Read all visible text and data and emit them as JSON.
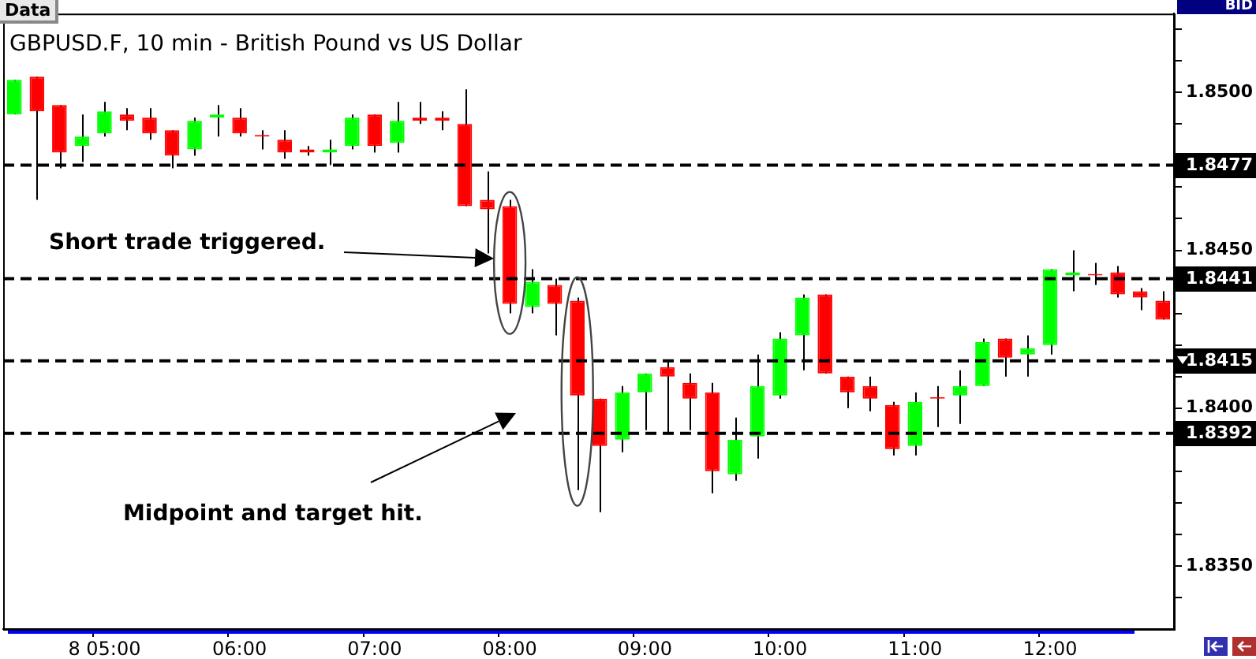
{
  "chart_data": {
    "type": "candlestick",
    "title": "GBPUSD.F, 10 min - British Pound vs US Dollar",
    "categories": [
      null,
      null,
      null,
      null,
      "8 05:00",
      null,
      null,
      null,
      null,
      null,
      "06:00",
      null,
      null,
      null,
      null,
      null,
      "07:00",
      null,
      null,
      null,
      null,
      null,
      "08:00",
      null,
      null,
      null,
      null,
      null,
      "09:00",
      null,
      null,
      null,
      null,
      null,
      "10:00",
      null,
      null,
      null,
      null,
      null,
      "11:00",
      null,
      null,
      null,
      null,
      null,
      "12:00",
      null,
      null,
      null,
      null,
      null
    ],
    "ohlc": [
      [
        1.8493,
        1.8504,
        1.8493,
        1.8504
      ],
      [
        1.8505,
        1.8505,
        1.8466,
        1.8494
      ],
      [
        1.8496,
        1.8496,
        1.8476,
        1.8481
      ],
      [
        1.8483,
        1.8493,
        1.8478,
        1.8486
      ],
      [
        1.8487,
        1.8497,
        1.8486,
        1.8494
      ],
      [
        1.8493,
        1.8495,
        1.8488,
        1.8491
      ],
      [
        1.8492,
        1.8495,
        1.8485,
        1.8487
      ],
      [
        1.8488,
        1.8488,
        1.8476,
        1.848
      ],
      [
        1.8482,
        1.8492,
        1.848,
        1.8491
      ],
      [
        1.8492,
        1.8496,
        1.8486,
        1.8493
      ],
      [
        1.8492,
        1.8495,
        1.8486,
        1.8487
      ],
      [
        1.8486,
        1.8488,
        1.8482,
        1.8486
      ],
      [
        1.8485,
        1.8488,
        1.8479,
        1.8481
      ],
      [
        1.8482,
        1.8483,
        1.848,
        1.8481
      ],
      [
        1.8481,
        1.8485,
        1.8477,
        1.8482
      ],
      [
        1.8483,
        1.8493,
        1.8482,
        1.8492
      ],
      [
        1.8493,
        1.8493,
        1.8481,
        1.8483
      ],
      [
        1.8484,
        1.8497,
        1.8481,
        1.8491
      ],
      [
        1.8492,
        1.8497,
        1.849,
        1.8491
      ],
      [
        1.8492,
        1.8494,
        1.8488,
        1.8491
      ],
      [
        1.849,
        1.8501,
        1.8464,
        1.8464
      ],
      [
        1.8466,
        1.8475,
        1.8449,
        1.8463
      ],
      [
        1.8464,
        1.8466,
        1.843,
        1.8433
      ],
      [
        1.8432,
        1.8444,
        1.843,
        1.844
      ],
      [
        1.8439,
        1.8441,
        1.8423,
        1.8433
      ],
      [
        1.8434,
        1.8435,
        1.8374,
        1.8404
      ],
      [
        1.8403,
        1.8403,
        1.8367,
        1.8388
      ],
      [
        1.839,
        1.8407,
        1.8386,
        1.8405
      ],
      [
        1.8405,
        1.8411,
        1.8393,
        1.8411
      ],
      [
        1.8413,
        1.8415,
        1.8392,
        1.841
      ],
      [
        1.8408,
        1.8411,
        1.8393,
        1.8403
      ],
      [
        1.8405,
        1.8408,
        1.8373,
        1.838
      ],
      [
        1.8379,
        1.8397,
        1.8377,
        1.839
      ],
      [
        1.8391,
        1.8417,
        1.8384,
        1.8407
      ],
      [
        1.8404,
        1.8424,
        1.8403,
        1.8422
      ],
      [
        1.8423,
        1.8436,
        1.8412,
        1.8435
      ],
      [
        1.8436,
        1.8436,
        1.8411,
        1.8411
      ],
      [
        1.841,
        1.841,
        1.84,
        1.8405
      ],
      [
        1.8407,
        1.841,
        1.8399,
        1.8403
      ],
      [
        1.8401,
        1.8402,
        1.8385,
        1.8387
      ],
      [
        1.8388,
        1.8405,
        1.8385,
        1.8402
      ],
      [
        1.8403,
        1.8407,
        1.8394,
        1.8403
      ],
      [
        1.8404,
        1.8412,
        1.8395,
        1.8407
      ],
      [
        1.8407,
        1.8422,
        1.8407,
        1.8421
      ],
      [
        1.8422,
        1.8422,
        1.841,
        1.8416
      ],
      [
        1.8417,
        1.8423,
        1.841,
        1.8419
      ],
      [
        1.842,
        1.8444,
        1.8417,
        1.8444
      ],
      [
        1.8442,
        1.845,
        1.8437,
        1.8443
      ],
      [
        1.8442,
        1.8446,
        1.8439,
        1.8442
      ],
      [
        1.8443,
        1.8445,
        1.8435,
        1.8436
      ],
      [
        1.8437,
        1.8438,
        1.8431,
        1.8435
      ],
      [
        1.8434,
        1.8437,
        1.8428,
        1.8428
      ]
    ],
    "colors": [
      "#00ff00",
      "#ff0000",
      "#ff0000",
      "#00ff00",
      "#00ff00",
      "#ff0000",
      "#ff0000",
      "#ff0000",
      "#00ff00",
      "#00ff00",
      "#ff0000",
      "#ff0000",
      "#ff0000",
      "#ff0000",
      "#00ff00",
      "#00ff00",
      "#ff0000",
      "#00ff00",
      "#ff0000",
      "#ff0000",
      "#ff0000",
      "#ff0000",
      "#ff0000",
      "#00ff00",
      "#ff0000",
      "#ff0000",
      "#ff0000",
      "#00ff00",
      "#00ff00",
      "#ff0000",
      "#ff0000",
      "#ff0000",
      "#00ff00",
      "#00ff00",
      "#00ff00",
      "#00ff00",
      "#ff0000",
      "#ff0000",
      "#ff0000",
      "#ff0000",
      "#00ff00",
      "#ff0000",
      "#00ff00",
      "#00ff00",
      "#ff0000",
      "#00ff00",
      "#00ff00",
      "#00ff00",
      "#ff0000",
      "#ff0000",
      "#ff0000",
      "#ff0000"
    ],
    "ylim": [
      1.833,
      1.8525
    ],
    "yticks": [
      {
        "value": 1.834,
        "label": null
      },
      {
        "value": 1.835,
        "label": "1.8350"
      },
      {
        "value": 1.836,
        "label": null
      },
      {
        "value": 1.837,
        "label": null
      },
      {
        "value": 1.838,
        "label": null
      },
      {
        "value": 1.839,
        "label": null
      },
      {
        "value": 1.84,
        "label": "1.8400"
      },
      {
        "value": 1.841,
        "label": null
      },
      {
        "value": 1.842,
        "label": null
      },
      {
        "value": 1.843,
        "label": null
      },
      {
        "value": 1.844,
        "label": null
      },
      {
        "value": 1.845,
        "label": "1.8450"
      },
      {
        "value": 1.846,
        "label": null
      },
      {
        "value": 1.847,
        "label": null
      },
      {
        "value": 1.848,
        "label": null
      },
      {
        "value": 1.849,
        "label": null
      },
      {
        "value": 1.85,
        "label": "1.8500"
      },
      {
        "value": 1.851,
        "label": null
      },
      {
        "value": 1.852,
        "label": null
      }
    ],
    "ref_lines": [
      {
        "axis": "y",
        "value": 1.8477,
        "label": "1.8477",
        "color": "#000000",
        "line_style": "dashed"
      },
      {
        "axis": "y",
        "value": 1.8441,
        "label": "1.8441",
        "color": "#000000",
        "line_style": "dashed"
      },
      {
        "axis": "y",
        "value": 1.8415,
        "label": "1.8415",
        "color": "#000000",
        "line_style": "dashed"
      },
      {
        "axis": "y",
        "value": 1.8392,
        "label": "1.8392",
        "color": "#000000",
        "line_style": "dashed"
      }
    ],
    "annotations": [
      "Data",
      "BID",
      "Short trade triggered.",
      "Midpoint and target hit."
    ]
  }
}
